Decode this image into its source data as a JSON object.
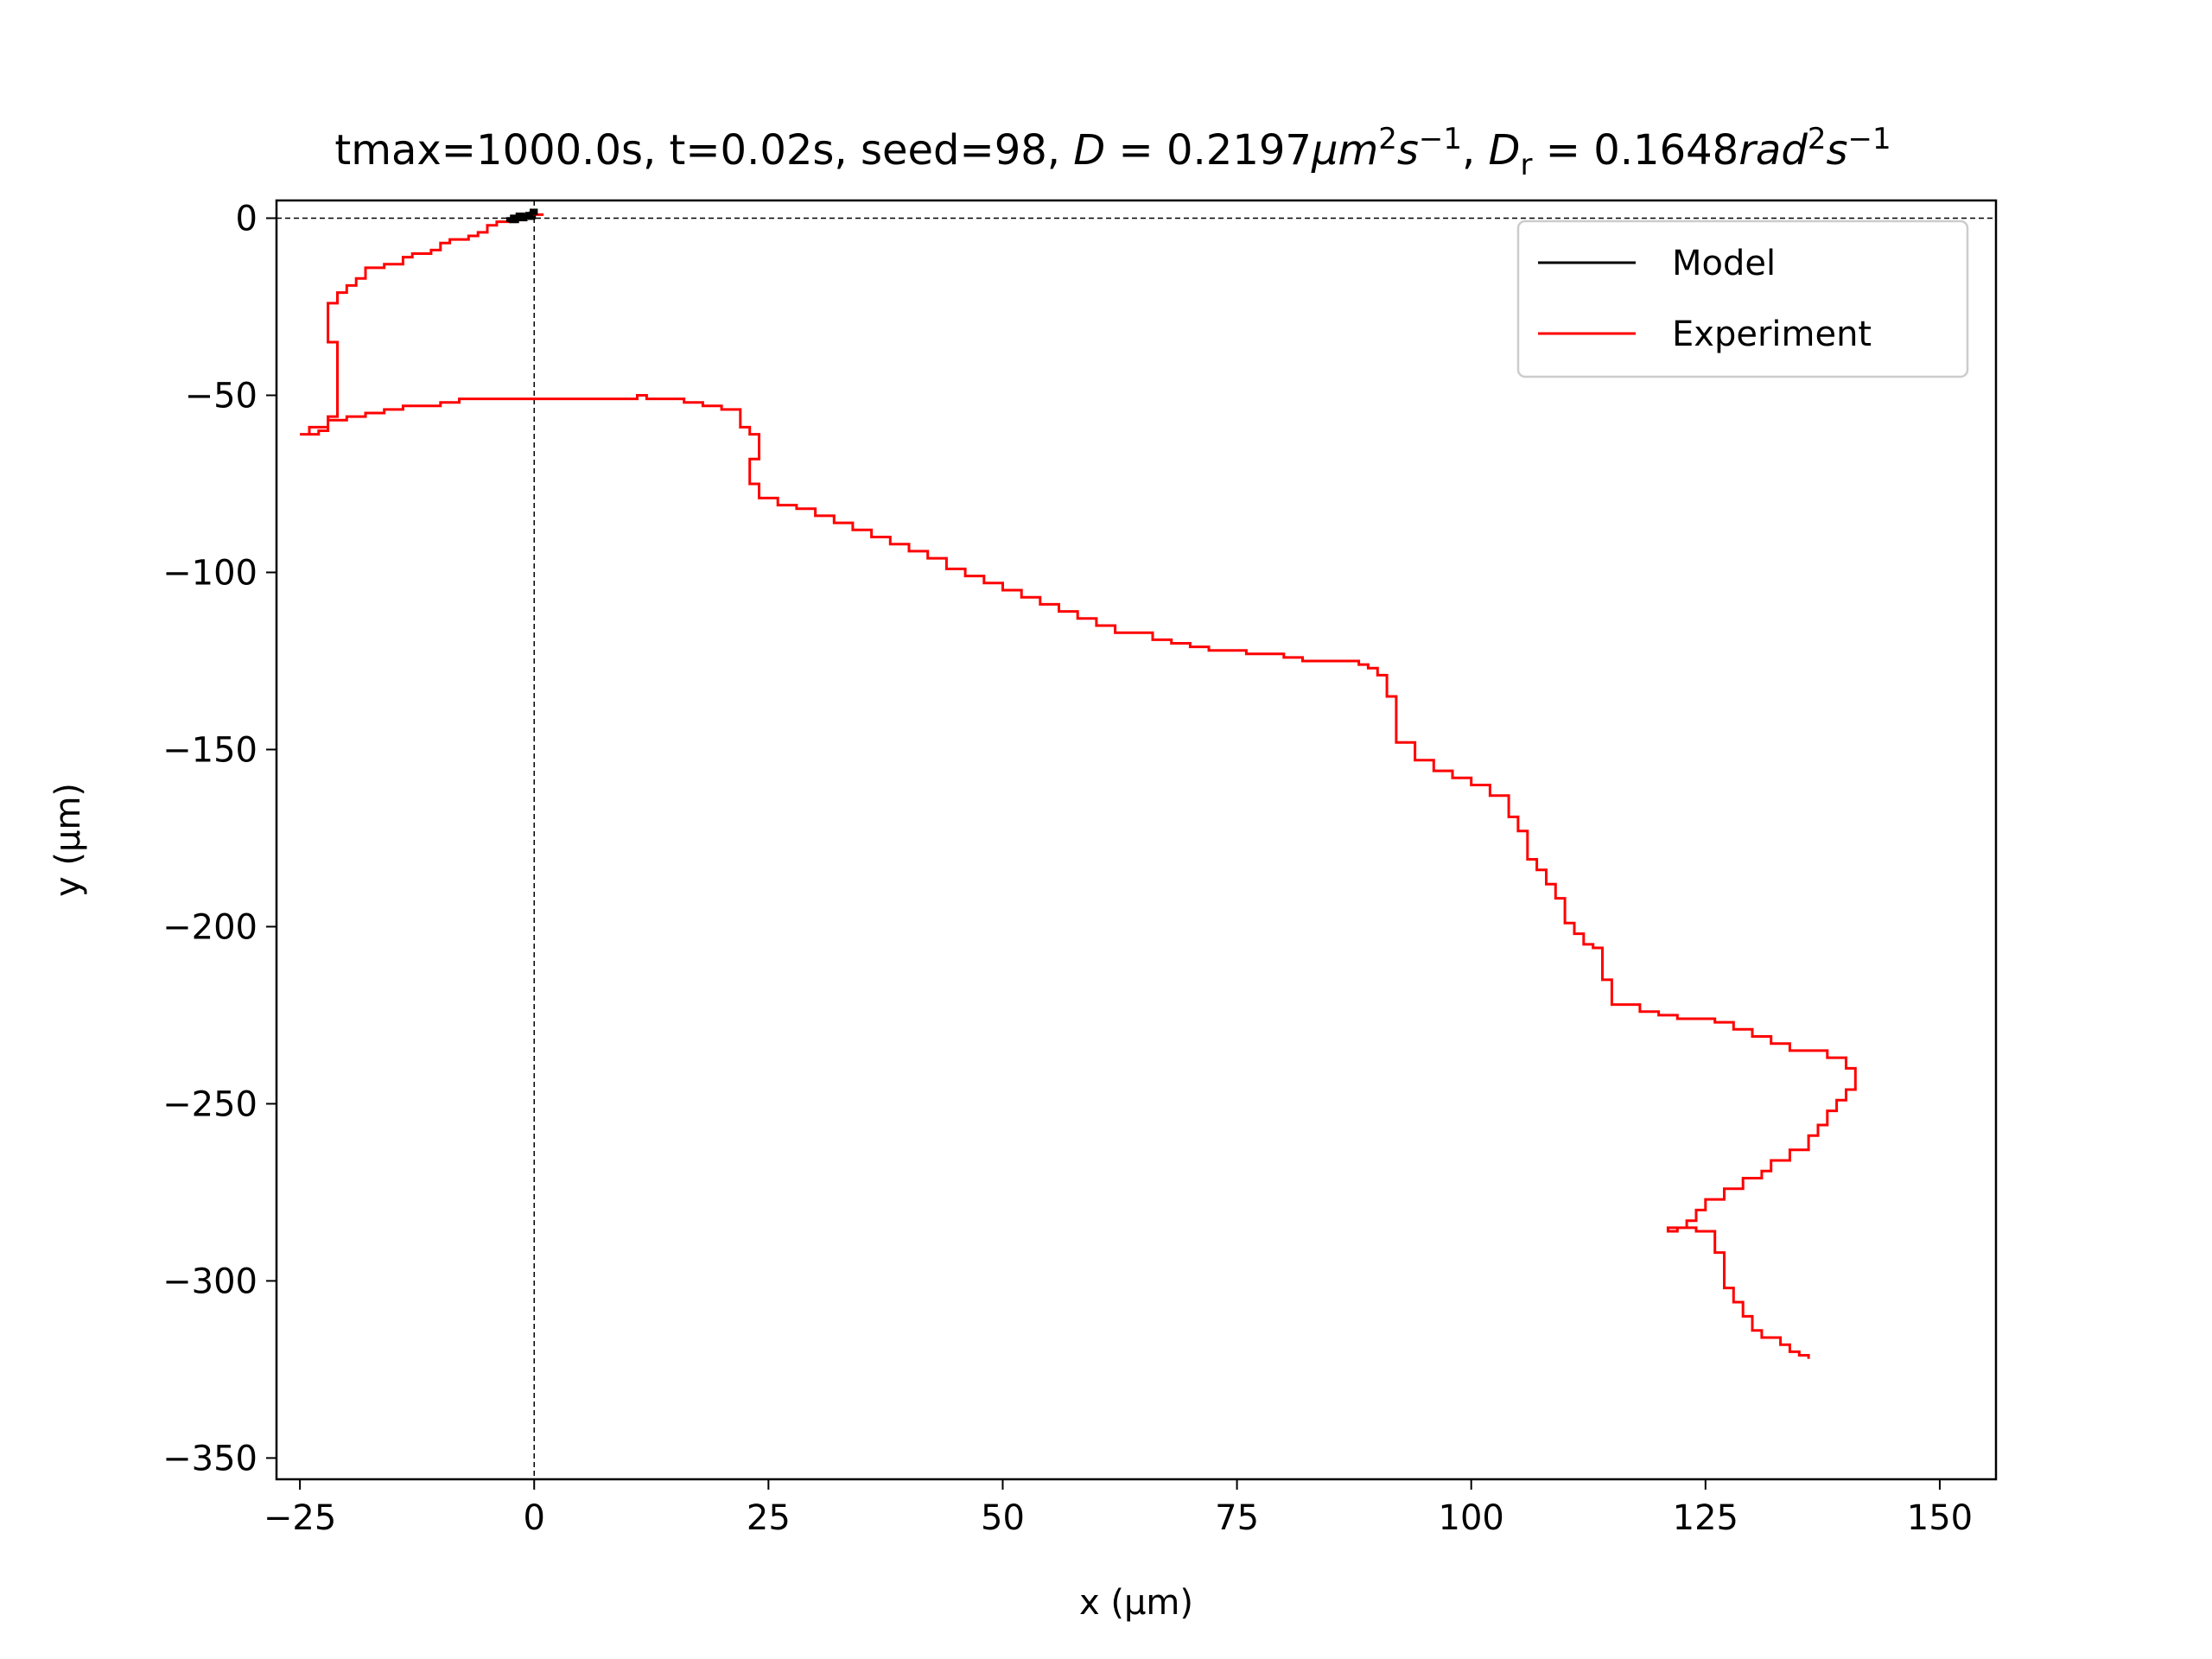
{
  "chart_data": {
    "type": "line",
    "title_parts": [
      "tmax=1000.0s, t=0.02s, seed=98, ",
      "D",
      " = 0.2197",
      "μm",
      "2",
      "s",
      "−1",
      ", ",
      "D",
      "r",
      " = 0.1648",
      "rad",
      "2",
      "s",
      "−1"
    ],
    "xlabel": "x (μm)",
    "ylabel": "y (μm)",
    "xlim": [
      -27.5,
      156
    ],
    "ylim": [
      -356,
      5
    ],
    "xticks": [
      -25,
      0,
      25,
      50,
      75,
      100,
      125,
      150
    ],
    "yticks": [
      0,
      -50,
      -100,
      -150,
      -200,
      -250,
      -300,
      -350
    ],
    "xtick_labels": [
      "−25",
      "0",
      "25",
      "50",
      "75",
      "100",
      "125",
      "150"
    ],
    "ytick_labels": [
      "0",
      "−50",
      "−100",
      "−150",
      "−200",
      "−250",
      "−300",
      "−350"
    ],
    "reference_lines": {
      "x": 0,
      "y": 0,
      "style": "dashed"
    },
    "legend_position": "upper right",
    "series": [
      {
        "name": "Model",
        "color": "#000000",
        "x": [
          0,
          -0.5,
          -1.2,
          -1.8,
          -2.4,
          -2.8,
          -2.2,
          -1.6,
          -0.8,
          -0.3,
          0.2,
          -0.4,
          -1.1,
          -1.9,
          -2.5,
          -1.8,
          -0.9,
          0
        ],
        "y": [
          0,
          0.6,
          1.1,
          0.5,
          -0.2,
          -0.6,
          -0.3,
          0.4,
          1.3,
          2.2,
          1.4,
          0.7,
          0.1,
          -0.5,
          -0.9,
          -0.4,
          0.2,
          0.8
        ]
      },
      {
        "name": "Experiment",
        "color": "#ff0000",
        "x": [
          1,
          -1,
          -2,
          -4,
          -5,
          -6,
          -7,
          -9,
          -10,
          -11,
          -13,
          -14,
          -16,
          -18,
          -19,
          -20,
          -21,
          -21,
          -22,
          -22,
          -21,
          -21,
          -22,
          -22,
          -23,
          -24,
          -25,
          -24,
          -22,
          -20,
          -18,
          -16,
          -14,
          -12,
          -10,
          -8,
          -4,
          0,
          4,
          8,
          10,
          11,
          12,
          14,
          16,
          18,
          20,
          22,
          22,
          23,
          24,
          24,
          23,
          24,
          26,
          28,
          30,
          32,
          34,
          36,
          38,
          40,
          42,
          44,
          46,
          48,
          50,
          52,
          54,
          56,
          58,
          60,
          62,
          66,
          68,
          70,
          72,
          74,
          76,
          80,
          82,
          84,
          88,
          89,
          90,
          90,
          91,
          92,
          92,
          94,
          96,
          98,
          100,
          102,
          104,
          104,
          105,
          106,
          106,
          107,
          108,
          109,
          110,
          110,
          111,
          112,
          113,
          114,
          114,
          115,
          115,
          115,
          116,
          118,
          120,
          122,
          126,
          128,
          130,
          132,
          134,
          138,
          140,
          141,
          141,
          141,
          140,
          139,
          138,
          137,
          136,
          134,
          132,
          131,
          129,
          127,
          125,
          124,
          123,
          121,
          122,
          124,
          126,
          126,
          127,
          127,
          128,
          129,
          130,
          131,
          133,
          134,
          135,
          136
        ],
        "y": [
          1,
          0,
          -1,
          -2,
          -4,
          -5,
          -6,
          -7,
          -9,
          -10,
          -11,
          -13,
          -14,
          -17,
          -19,
          -21,
          -22,
          -24,
          -24,
          -35,
          -46,
          -56,
          -57,
          -60,
          -61,
          -61,
          -61,
          -59,
          -57,
          -56,
          -55,
          -54,
          -53,
          -53,
          -52,
          -51,
          -51,
          -51,
          -51,
          -51,
          -51,
          -50,
          -51,
          -51,
          -52,
          -53,
          -54,
          -55,
          -59,
          -61,
          -63,
          -68,
          -75,
          -79,
          -81,
          -82,
          -84,
          -86,
          -88,
          -90,
          -92,
          -94,
          -96,
          -99,
          -101,
          -103,
          -105,
          -107,
          -109,
          -111,
          -113,
          -115,
          -117,
          -119,
          -120,
          -121,
          -122,
          -122,
          -123,
          -124,
          -125,
          -125,
          -126,
          -127,
          -127,
          -129,
          -135,
          -141,
          -148,
          -153,
          -156,
          -158,
          -160,
          -163,
          -165,
          -169,
          -173,
          -177,
          -181,
          -184,
          -188,
          -192,
          -196,
          -199,
          -202,
          -205,
          -206,
          -210,
          -215,
          -219,
          -220,
          -222,
          -222,
          -224,
          -225,
          -226,
          -227,
          -229,
          -231,
          -233,
          -235,
          -237,
          -240,
          -241,
          -244,
          -246,
          -249,
          -252,
          -256,
          -259,
          -263,
          -266,
          -269,
          -271,
          -274,
          -277,
          -280,
          -283,
          -285,
          -286,
          -285,
          -286,
          -287,
          -292,
          -297,
          -302,
          -306,
          -310,
          -314,
          -316,
          -318,
          -320,
          -321,
          -322
        ]
      }
    ]
  }
}
